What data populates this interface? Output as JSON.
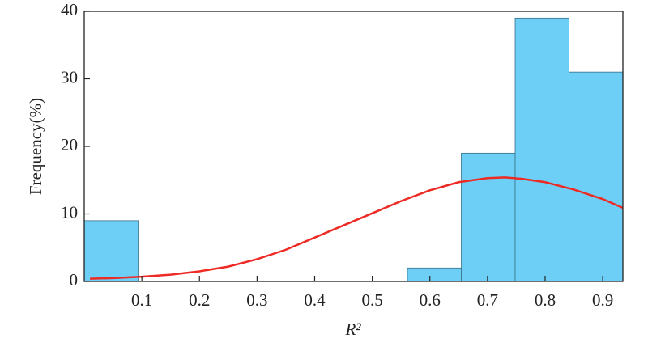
{
  "chart_data": {
    "type": "histogram",
    "xlabel": "R²",
    "ylabel": "Frequency(%)",
    "bins": [
      0,
      0.0935,
      0.187,
      0.2805,
      0.374,
      0.4675,
      0.561,
      0.6545,
      0.748,
      0.8415,
      0.935
    ],
    "values": [
      9,
      0,
      0,
      0,
      0,
      0,
      2,
      19,
      39,
      31
    ],
    "color": "#6dcff6",
    "fit": {
      "x": [
        0.01,
        0.05,
        0.1,
        0.15,
        0.2,
        0.25,
        0.3,
        0.35,
        0.4,
        0.45,
        0.5,
        0.55,
        0.6,
        0.65,
        0.7,
        0.73,
        0.76,
        0.8,
        0.85,
        0.9,
        0.935
      ],
      "values": [
        0.4,
        0.5,
        0.7,
        1.0,
        1.5,
        2.2,
        3.3,
        4.7,
        6.5,
        8.3,
        10.1,
        11.9,
        13.5,
        14.7,
        15.3,
        15.4,
        15.2,
        14.7,
        13.6,
        12.2,
        10.9
      ],
      "color": "#ee2a24"
    },
    "xlim": [
      0,
      0.935
    ],
    "ylim": [
      0,
      40
    ],
    "xticks": [
      0.1,
      0.2,
      0.3,
      0.4,
      0.5,
      0.6,
      0.7,
      0.8,
      0.9
    ],
    "yticks": [
      0,
      10,
      20,
      30,
      40
    ]
  }
}
